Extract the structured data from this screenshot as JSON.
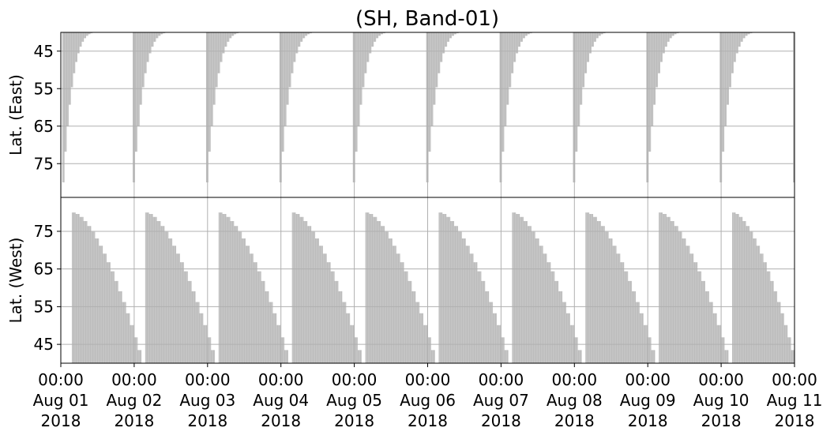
{
  "chart_data": {
    "type": "area",
    "title": "(SH, Band-01)",
    "fill_color": "#bdbdbd",
    "grid_color": "#b0b0b0",
    "grid": true,
    "x": {
      "range": [
        "2018-08-01 00:00",
        "2018-08-11 00:00"
      ],
      "tick_labels": [
        [
          "00:00",
          "Aug 01",
          "2018"
        ],
        [
          "00:00",
          "Aug 02",
          "2018"
        ],
        [
          "00:00",
          "Aug 03",
          "2018"
        ],
        [
          "00:00",
          "Aug 04",
          "2018"
        ],
        [
          "00:00",
          "Aug 05",
          "2018"
        ],
        [
          "00:00",
          "Aug 06",
          "2018"
        ],
        [
          "00:00",
          "Aug 07",
          "2018"
        ],
        [
          "00:00",
          "Aug 08",
          "2018"
        ],
        [
          "00:00",
          "Aug 09",
          "2018"
        ],
        [
          "00:00",
          "Aug 10",
          "2018"
        ],
        [
          "00:00",
          "Aug 11",
          "2018"
        ]
      ]
    },
    "panels": [
      {
        "name": "east",
        "ylabel": "Lat. (East)",
        "yticks": [
          45,
          55,
          65,
          75
        ],
        "ylim": [
          40,
          84
        ],
        "inverted": true,
        "segments": [
          {
            "start": 0.02,
            "end": 0.55,
            "edge_from": 80,
            "edge_to": 40
          },
          {
            "start": 0.98,
            "end": 1.55,
            "edge_from": 80,
            "edge_to": 40
          },
          {
            "start": 1.98,
            "end": 2.55,
            "edge_from": 80,
            "edge_to": 40
          },
          {
            "start": 2.98,
            "end": 3.55,
            "edge_from": 80,
            "edge_to": 40
          },
          {
            "start": 3.98,
            "end": 4.55,
            "edge_from": 80,
            "edge_to": 40
          },
          {
            "start": 4.98,
            "end": 5.55,
            "edge_from": 80,
            "edge_to": 40
          },
          {
            "start": 5.98,
            "end": 6.55,
            "edge_from": 80,
            "edge_to": 40
          },
          {
            "start": 6.98,
            "end": 7.55,
            "edge_from": 80,
            "edge_to": 40
          },
          {
            "start": 7.98,
            "end": 8.55,
            "edge_from": 80,
            "edge_to": 40
          },
          {
            "start": 8.98,
            "end": 9.55,
            "edge_from": 80,
            "edge_to": 40
          },
          {
            "start": 9.98,
            "end": 10.0,
            "edge_from": 80,
            "edge_to": 80
          }
        ]
      },
      {
        "name": "west",
        "ylabel": "Lat. (West)",
        "yticks": [
          45,
          55,
          65,
          75
        ],
        "ylim": [
          40,
          84
        ],
        "inverted": false,
        "segments": [
          {
            "start": 0.0,
            "end": 0.1,
            "edge_from": 40,
            "edge_to": 40
          },
          {
            "start": 0.15,
            "end": 1.1,
            "edge_from": 80,
            "edge_to": 40
          },
          {
            "start": 1.15,
            "end": 2.1,
            "edge_from": 80,
            "edge_to": 40
          },
          {
            "start": 2.15,
            "end": 3.1,
            "edge_from": 80,
            "edge_to": 40
          },
          {
            "start": 3.15,
            "end": 4.1,
            "edge_from": 80,
            "edge_to": 40
          },
          {
            "start": 4.15,
            "end": 5.1,
            "edge_from": 80,
            "edge_to": 40
          },
          {
            "start": 5.15,
            "end": 6.1,
            "edge_from": 80,
            "edge_to": 40
          },
          {
            "start": 6.15,
            "end": 7.1,
            "edge_from": 80,
            "edge_to": 40
          },
          {
            "start": 7.15,
            "end": 8.1,
            "edge_from": 80,
            "edge_to": 40
          },
          {
            "start": 8.15,
            "end": 9.1,
            "edge_from": 80,
            "edge_to": 40
          },
          {
            "start": 9.15,
            "end": 10.0,
            "edge_from": 80,
            "edge_to": 40
          }
        ]
      }
    ]
  }
}
